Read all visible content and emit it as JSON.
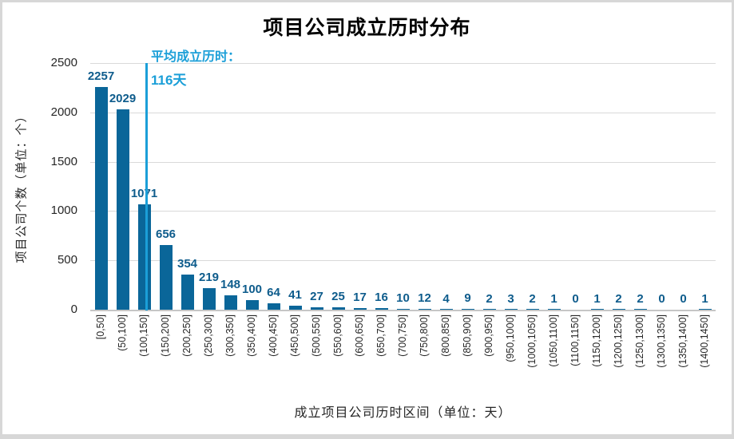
{
  "chart_data": {
    "type": "bar",
    "title": "项目公司成立历时分布",
    "xlabel": "成立项目公司历时区间（单位：天）",
    "ylabel": "项目公司个数（单位：个）",
    "categories": [
      "[0,50]",
      "(50,100]",
      "(100,150]",
      "(150,200]",
      "(200,250]",
      "(250,300]",
      "(300,350]",
      "(350,400]",
      "(400,450]",
      "(450,500]",
      "(500,550]",
      "(550,600]",
      "(600,650]",
      "(650,700]",
      "(700,750]",
      "(750,800]",
      "(800,850]",
      "(850,900]",
      "(900,950]",
      "(950,1000]",
      "(1000,1050]",
      "(1050,1100]",
      "(1100,1150]",
      "(1150,1200]",
      "(1200,1250]",
      "(1250,1300]",
      "(1300,1350]",
      "(1350,1400]",
      "(1400,1450]"
    ],
    "values": [
      2257,
      2029,
      1071,
      656,
      354,
      219,
      148,
      100,
      64,
      41,
      27,
      25,
      17,
      16,
      10,
      12,
      4,
      9,
      2,
      3,
      2,
      1,
      0,
      1,
      2,
      2,
      0,
      0,
      1
    ],
    "ylim": [
      0,
      2500
    ],
    "yticks": [
      0,
      500,
      1000,
      1500,
      2000,
      2500
    ],
    "grid": "horizontal",
    "legend": "none",
    "bar_color": "#0a6699",
    "value_label_color": "#0e5c8c",
    "annotation": {
      "line1": "平均成立历时：",
      "line2": "116天",
      "value_days": 116,
      "color": "#1b9fd8"
    }
  }
}
